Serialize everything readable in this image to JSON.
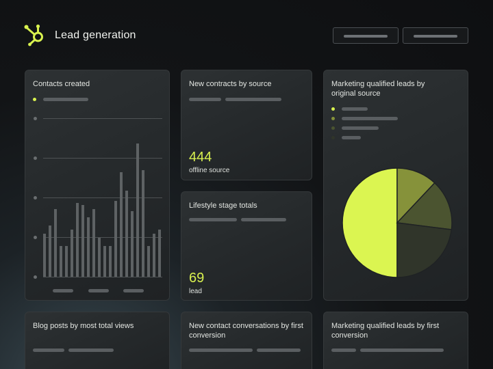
{
  "header": {
    "title": "Lead generation",
    "logo_icon": "hubspot-sprocket-icon",
    "accent_color": "#d9f24f"
  },
  "cards": {
    "contacts_created": {
      "title": "Contacts created"
    },
    "new_contracts": {
      "title": "New contracts by source",
      "value": "444",
      "label": "offline source"
    },
    "mql_original": {
      "title": "Marketing qualified leads by original source"
    },
    "lifestyle": {
      "title": "Lifestyle stage totals",
      "value": "69",
      "label": "lead"
    },
    "blog_posts": {
      "title": "Blog posts by most total views"
    },
    "contact_conversations": {
      "title": "New contact conversations by first conversion"
    },
    "mql_first": {
      "title": "Marketing qualified leads by first conversion"
    }
  },
  "chart_data": [
    {
      "type": "bar",
      "values": [
        21,
        25,
        33,
        15,
        15,
        23,
        36,
        35,
        29,
        33,
        19,
        15,
        15,
        37,
        51,
        42,
        32,
        65,
        52,
        15,
        21,
        23
      ]
    },
    {
      "type": "pie",
      "values": [
        50,
        12,
        15,
        23
      ],
      "colors": [
        "#dbf551",
        "#86923a",
        "#4b5430",
        "#30352a"
      ]
    }
  ]
}
